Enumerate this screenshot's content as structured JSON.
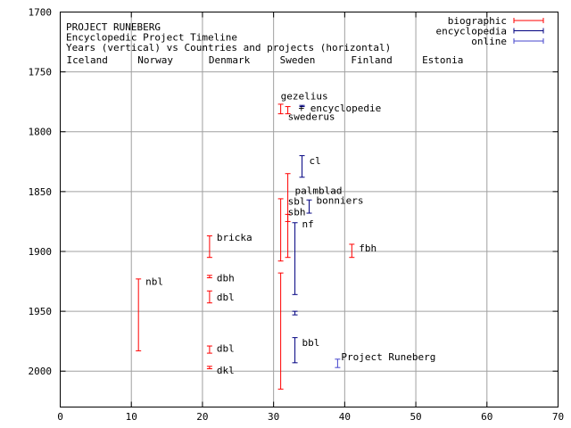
{
  "chart_data": {
    "type": "errorbar",
    "title_lines": [
      "PROJECT RUNEBERG",
      "Encyclopedic Project Timeline",
      "Years (vertical) vs Countries and projects (horizontal)"
    ],
    "xlim": [
      0,
      70
    ],
    "ylim": [
      2030,
      1700
    ],
    "x_ticks": [
      0,
      10,
      20,
      30,
      40,
      50,
      60,
      70
    ],
    "y_ticks": [
      1700,
      1750,
      1800,
      1850,
      1900,
      1950,
      2000
    ],
    "grid": true,
    "legend_position": "top-right",
    "countries": [
      {
        "name": "Iceland",
        "x": 0
      },
      {
        "name": "Norway",
        "x": 10
      },
      {
        "name": "Denmark",
        "x": 20
      },
      {
        "name": "Sweden",
        "x": 30
      },
      {
        "name": "Finland",
        "x": 40
      },
      {
        "name": "Estonia",
        "x": 50
      }
    ],
    "series": [
      {
        "name": "biographic",
        "color": "#ff0000",
        "bars": [
          {
            "x": 11,
            "from": 1923,
            "to": 1983
          },
          {
            "x": 21,
            "from": 1887,
            "to": 1905
          },
          {
            "x": 21,
            "from": 1920,
            "to": 1922
          },
          {
            "x": 21,
            "from": 1933,
            "to": 1943
          },
          {
            "x": 21,
            "from": 1979,
            "to": 1985
          },
          {
            "x": 21,
            "from": 1996,
            "to": 1998
          },
          {
            "x": 31,
            "from": 1777,
            "to": 1785
          },
          {
            "x": 31,
            "from": 1856,
            "to": 1908
          },
          {
            "x": 31,
            "from": 1918,
            "to": 2015
          },
          {
            "x": 32,
            "from": 1779,
            "to": 1785
          },
          {
            "x": 32,
            "from": 1835,
            "to": 1905
          },
          {
            "x": 32,
            "from": 1869,
            "to": 1875
          },
          {
            "x": 41,
            "from": 1894,
            "to": 1905
          }
        ]
      },
      {
        "name": "encyclopedia",
        "color": "#000080",
        "bars": [
          {
            "x": 33,
            "from": 1876,
            "to": 1936
          },
          {
            "x": 33,
            "from": 1950,
            "to": 1953
          },
          {
            "x": 33,
            "from": 1972,
            "to": 1993
          },
          {
            "x": 34,
            "from": 1778,
            "to": 1779
          },
          {
            "x": 34,
            "from": 1820,
            "to": 1838
          },
          {
            "x": 35,
            "from": 1857,
            "to": 1868
          }
        ]
      },
      {
        "name": "online",
        "color": "#4444cc",
        "bars": [
          {
            "x": 39,
            "from": 1990,
            "to": 1997
          }
        ]
      }
    ],
    "labels": [
      {
        "text": "nbl",
        "x": 12,
        "y": 1925
      },
      {
        "text": "bricka",
        "x": 22,
        "y": 1888
      },
      {
        "text": "dbh",
        "x": 22,
        "y": 1922
      },
      {
        "text": "dbl",
        "x": 22,
        "y": 1938
      },
      {
        "text": "dbl",
        "x": 22,
        "y": 1981
      },
      {
        "text": "dkl",
        "x": 22,
        "y": 1999
      },
      {
        "text": "gezelius",
        "x": 31,
        "y": 1770
      },
      {
        "text": "+ encyclopedie",
        "x": 33.5,
        "y": 1780
      },
      {
        "text": "swederus",
        "x": 32,
        "y": 1787
      },
      {
        "text": "cl",
        "x": 35,
        "y": 1824
      },
      {
        "text": "palmblad",
        "x": 33,
        "y": 1849
      },
      {
        "text": "sbl",
        "x": 32,
        "y": 1858
      },
      {
        "text": "bonniers",
        "x": 36,
        "y": 1857
      },
      {
        "text": "sbh",
        "x": 32,
        "y": 1867
      },
      {
        "text": "nf",
        "x": 34,
        "y": 1877
      },
      {
        "text": "fbh",
        "x": 42,
        "y": 1897
      },
      {
        "text": "bbl",
        "x": 34,
        "y": 1976
      },
      {
        "text": "Project Runeberg",
        "x": 39.5,
        "y": 1988
      }
    ]
  }
}
